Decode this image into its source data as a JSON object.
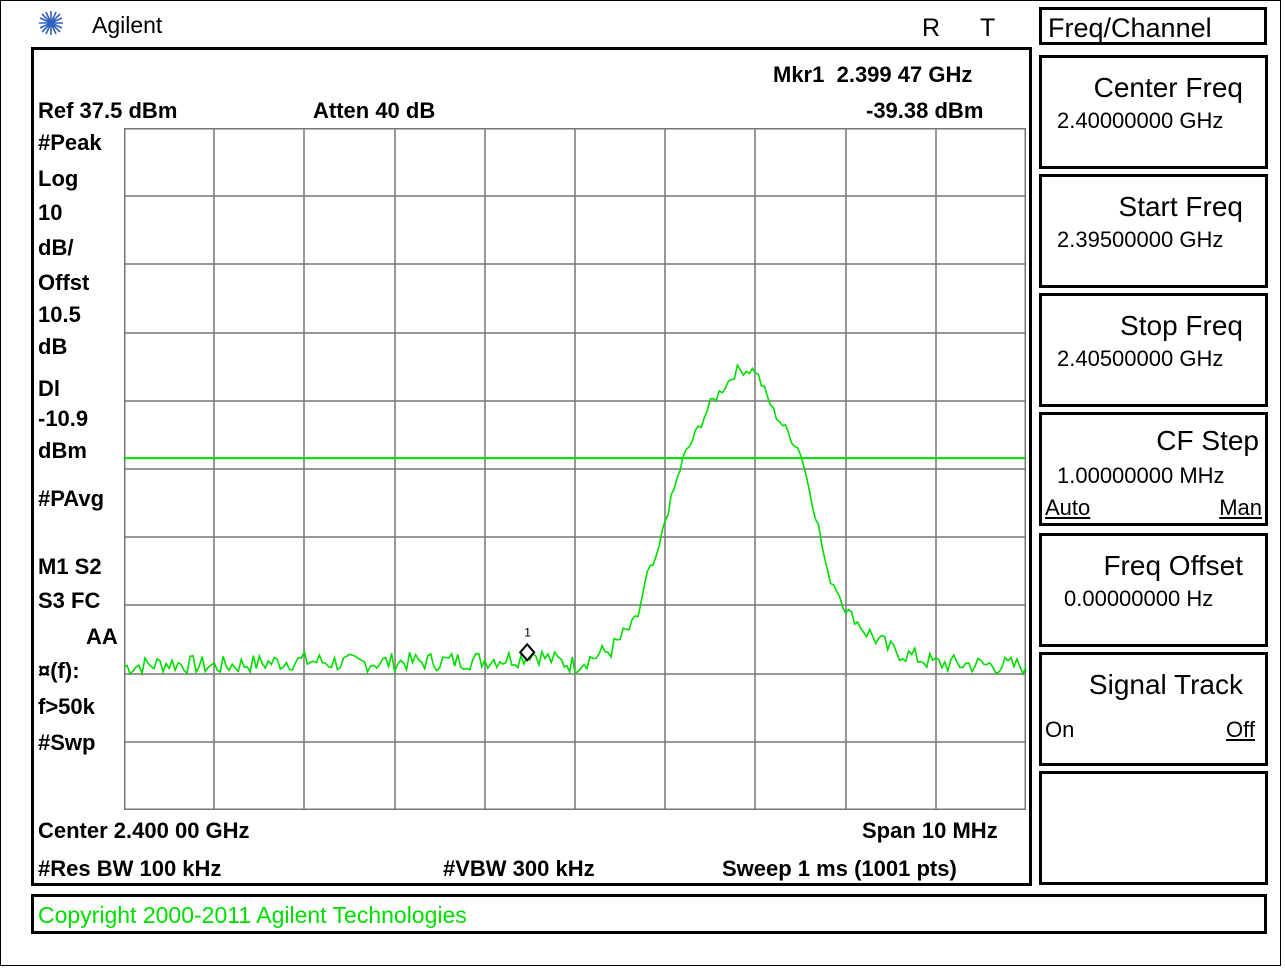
{
  "header": {
    "brand": "Agilent",
    "r_indicator": "R",
    "t_indicator": "T",
    "menu_title": "Freq/Channel"
  },
  "marker": {
    "label": "Mkr1",
    "freq": "2.399 47 GHz",
    "amp": "-39.38 dBm",
    "symbol_label": "1"
  },
  "settings": {
    "ref_level": "Ref 37.5 dBm",
    "atten": "Atten 40 dB",
    "center": "Center 2.400 00 GHz",
    "span": "Span 10 MHz",
    "res_bw": "#Res BW 100 kHz",
    "vbw": "#VBW 300 kHz",
    "sweep": "Sweep 1 ms (1001 pts)"
  },
  "annotations": {
    "peak": "#Peak",
    "log": "Log",
    "div": "10",
    "div_unit": "dB/",
    "offst": "Offst",
    "offst_val": "10.5",
    "offst_unit": "dB",
    "dl": "Dl",
    "dl_val": "-10.9",
    "dl_unit": "dBm",
    "pavg": "#PAvg",
    "m1s2": "M1  S2",
    "s3fc": "S3  FC",
    "aa": "AA",
    "ff": "¤(f):",
    "f50k": "f>50k",
    "swp": "#Swp"
  },
  "softkeys": [
    {
      "label": "Center Freq",
      "value": "2.40000000 GHz"
    },
    {
      "label": "Start Freq",
      "value": "2.39500000 GHz"
    },
    {
      "label": "Stop Freq",
      "value": "2.40500000 GHz"
    },
    {
      "label": "CF Step",
      "value": "1.00000000 MHz",
      "left": "Auto",
      "right": "Man"
    },
    {
      "label": "Freq Offset",
      "value": "0.00000000  Hz"
    },
    {
      "label": "Signal Track",
      "left": "On",
      "right": "Off"
    },
    {
      "label": ""
    }
  ],
  "status": {
    "copyright": "Copyright 2000-2011 Agilent Technologies"
  },
  "colors": {
    "trace": "#00dd00",
    "grid": "#777777",
    "text": "#000000"
  },
  "chart_data": {
    "type": "line",
    "xlabel": "",
    "ylabel": "",
    "x_unit": "GHz",
    "y_unit": "dBm",
    "xlim": [
      2.395,
      2.405
    ],
    "ylim": [
      -62.5,
      37.5
    ],
    "grid": true,
    "display_line": -10.9,
    "series": [
      {
        "name": "",
        "x": [
          2.395,
          2.3955,
          2.396,
          2.3965,
          2.397,
          2.3975,
          2.398,
          2.3985,
          2.399,
          2.3994,
          2.3995,
          2.3997,
          2.39985,
          2.4,
          2.4004,
          2.4006,
          2.4007,
          2.4008,
          2.4009,
          2.401,
          2.4012,
          2.4015,
          2.4018,
          2.402,
          2.4022,
          2.4025,
          2.4027,
          2.4028,
          2.4029,
          2.403,
          2.4032,
          2.4035,
          2.404,
          2.405
        ],
        "y": [
          -41.5,
          -41,
          -41.4,
          -41,
          -40.6,
          -41,
          -40.8,
          -40.7,
          -40.5,
          -40.2,
          -39.4,
          -40.3,
          -40.8,
          -41.2,
          -39,
          -36,
          -34,
          -28,
          -26,
          -20,
          -11,
          -3,
          2,
          2,
          -4,
          -10,
          -21,
          -28,
          -30,
          -33,
          -36,
          -39,
          -41,
          -41.4
        ]
      }
    ]
  }
}
